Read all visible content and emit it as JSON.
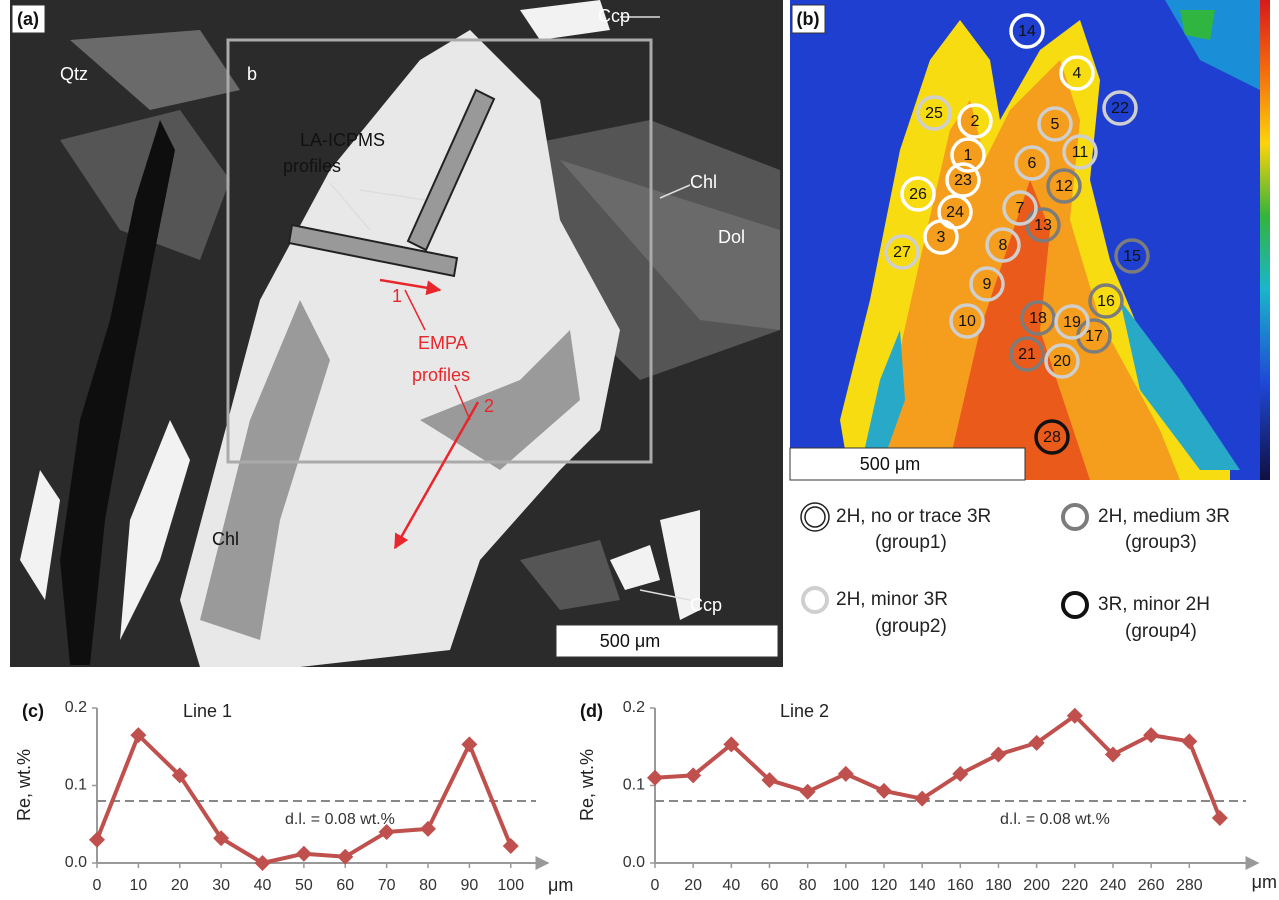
{
  "panel_a": {
    "label": "(a)",
    "qtz": "Qtz",
    "box_label": "b",
    "ccp_top": "Ccp",
    "la_icpms_1": "LA-ICPMS",
    "la_icpms_2": "profiles",
    "chl_right": "Chl",
    "dol": "Dol",
    "profile_1": "1",
    "empa_1": "EMPA",
    "empa_2": "profiles",
    "profile_2": "2",
    "chl_left": "Chl",
    "ccp_bottom": "Ccp",
    "scale_bar": "500 μm"
  },
  "panel_b": {
    "label": "(b)",
    "scale_bar": "500 μm",
    "legend": [
      {
        "text": "2H, no or trace 3R",
        "group": "(group1)",
        "spots": [
          "14",
          "4",
          "2",
          "1",
          "23",
          "26",
          "24",
          "3"
        ]
      },
      {
        "text": "2H, medium 3R",
        "group": "(group3)",
        "spots": [
          "12",
          "13",
          "15",
          "16",
          "18",
          "17",
          "21"
        ]
      },
      {
        "text": "2H, minor 3R",
        "group": "(group2)",
        "spots": [
          "25",
          "5",
          "22",
          "11",
          "6",
          "7",
          "8",
          "27",
          "9",
          "10",
          "19",
          "20"
        ]
      },
      {
        "text": "3R, minor 2H",
        "group": "(group4)",
        "spots": [
          "28"
        ]
      }
    ]
  },
  "chart_data": [
    {
      "type": "line",
      "label": "(c)",
      "title": "Line 1",
      "y_label": "Re, wt.%",
      "x_unit": "μm",
      "color": "#c0504d",
      "x": [
        0,
        10,
        20,
        30,
        40,
        50,
        60,
        70,
        80,
        90,
        100
      ],
      "values": [
        0.03,
        0.165,
        0.113,
        0.032,
        0.0,
        0.012,
        0.008,
        0.04,
        0.044,
        0.153,
        0.022
      ],
      "xlim": [
        0,
        109
      ],
      "xticks": [
        0,
        10,
        20,
        30,
        40,
        50,
        60,
        70,
        80,
        90,
        100
      ],
      "ylim": [
        0,
        0.2
      ],
      "yticks": [
        {
          "value": 0,
          "label": "0.0"
        },
        0.1,
        0.2
      ],
      "threshold": {
        "value": 0.08,
        "label": "d.l. = 0.08 wt.%"
      }
    },
    {
      "type": "line",
      "label": "(d)",
      "title": "Line 2",
      "y_label": "Re, wt.%",
      "x_unit": "μm",
      "color": "#c0504d",
      "x": [
        0,
        20,
        40,
        60,
        80,
        100,
        120,
        140,
        160,
        180,
        200,
        220,
        240,
        260,
        280,
        296
      ],
      "values": [
        0.11,
        0.113,
        0.153,
        0.107,
        0.092,
        0.115,
        0.093,
        0.083,
        0.115,
        0.14,
        0.155,
        0.19,
        0.14,
        0.165,
        0.157,
        0.058
      ],
      "xlim": [
        0,
        316
      ],
      "xticks": [
        0,
        20,
        40,
        60,
        80,
        100,
        120,
        140,
        160,
        180,
        200,
        220,
        240,
        260,
        280
      ],
      "ylim": [
        0,
        0.2
      ],
      "yticks": [
        {
          "value": 0,
          "label": "0.0"
        },
        0.1,
        0.2
      ],
      "threshold": {
        "value": 0.08,
        "label": "d.l. = 0.08 wt.%"
      }
    }
  ]
}
